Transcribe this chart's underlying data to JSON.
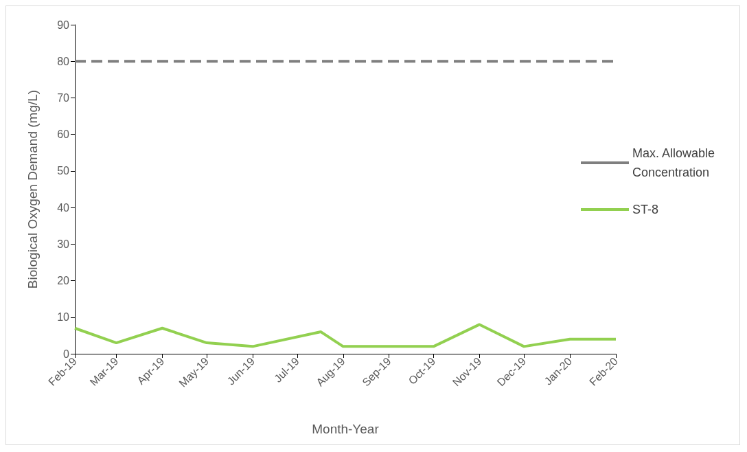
{
  "chart_data": {
    "type": "line",
    "xlabel": "Month-Year",
    "ylabel": "Biological Oxygen Demand (mg/L)",
    "xlim": [
      "2019-02-01",
      "2020-02-01"
    ],
    "xticks": [
      {
        "value": "2019-02-01",
        "label": "Feb-19"
      },
      {
        "value": "2019-03-01",
        "label": "Mar-19"
      },
      {
        "value": "2019-04-01",
        "label": "Apr-19"
      },
      {
        "value": "2019-05-01",
        "label": "May-19"
      },
      {
        "value": "2019-06-01",
        "label": "Jun-19"
      },
      {
        "value": "2019-07-01",
        "label": "Jul-19"
      },
      {
        "value": "2019-08-01",
        "label": "Aug-19"
      },
      {
        "value": "2019-09-01",
        "label": "Sep-19"
      },
      {
        "value": "2019-10-01",
        "label": "Oct-19"
      },
      {
        "value": "2019-11-01",
        "label": "Nov-19"
      },
      {
        "value": "2019-12-01",
        "label": "Dec-19"
      },
      {
        "value": "2020-01-01",
        "label": "Jan-20"
      },
      {
        "value": "2020-02-01",
        "label": "Feb-20"
      }
    ],
    "ylim": [
      0,
      90
    ],
    "yticks": [
      0,
      10,
      20,
      30,
      40,
      50,
      60,
      70,
      80,
      90
    ],
    "grid": false,
    "legend": "right",
    "marker": "none",
    "series": [
      {
        "name": "Max. Allowable Concentration",
        "color": "#7f7f7f",
        "line_style": "dashed",
        "x": [
          "2019-02-01",
          "2020-02-01"
        ],
        "values": [
          80,
          80
        ]
      },
      {
        "name": "ST-8",
        "color": "#92d050",
        "line_style": "solid",
        "x": [
          "2019-02-01",
          "2019-03-01",
          "2019-04-01",
          "2019-05-01",
          "2019-06-01",
          "2019-07-17",
          "2019-08-01",
          "2019-09-01",
          "2019-10-01",
          "2019-11-01",
          "2019-12-01",
          "2020-01-01",
          "2020-02-01"
        ],
        "values": [
          7,
          3,
          7,
          3,
          2,
          6,
          2,
          2,
          2,
          8,
          2,
          4,
          4
        ]
      }
    ]
  }
}
